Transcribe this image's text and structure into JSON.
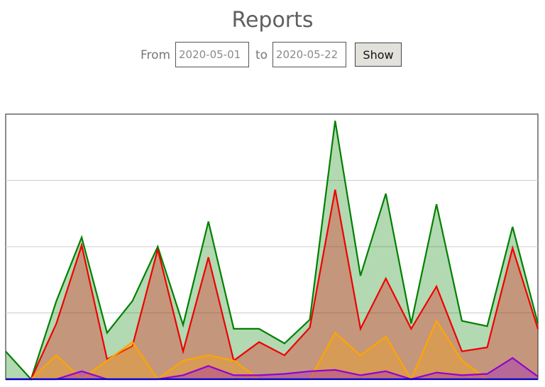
{
  "header": {
    "title": "Reports"
  },
  "filter": {
    "from_label": "From",
    "from_value": "2020-05-01",
    "to_label": "to",
    "to_value": "2020-05-22",
    "show_label": "Show"
  },
  "colors": {
    "green": "#008000",
    "red": "#ee0000",
    "orange": "#ffa500",
    "purple": "#9400d3",
    "blue": "#0000cc",
    "grid": "#cccccc",
    "frame": "#666666"
  },
  "chart_data": {
    "type": "area",
    "grid": true,
    "ylim": [
      0,
      100
    ],
    "x_count": 22,
    "series": [
      {
        "color": "#008000",
        "values": [
          10.5,
          0,
          29.5,
          53.5,
          17.5,
          29.5,
          50,
          20.5,
          59.5,
          19,
          19,
          13.5,
          22.5,
          97.5,
          39,
          70,
          21,
          66,
          22,
          20,
          57.5,
          21
        ]
      },
      {
        "color": "#ee0000",
        "values": [
          0,
          0,
          21,
          50.5,
          7.5,
          12.5,
          49,
          10.5,
          46,
          7,
          14,
          9,
          19.5,
          71.5,
          19,
          38,
          19,
          35,
          10.5,
          12,
          49.5,
          19
        ]
      },
      {
        "color": "#ffa500",
        "values": [
          0,
          0,
          9,
          0,
          7,
          14,
          0,
          7,
          9,
          7,
          0,
          0,
          0,
          17.5,
          9,
          16,
          0,
          22,
          7,
          0,
          0,
          0
        ]
      },
      {
        "color": "#9400d3",
        "values": [
          0,
          0,
          0,
          3,
          0,
          0,
          0,
          1.5,
          5,
          1.5,
          1.5,
          2,
          3,
          3.5,
          1.5,
          3,
          0,
          2.5,
          1.5,
          2,
          8,
          1
        ]
      },
      {
        "color": "#0000cc",
        "values": [
          0,
          0,
          0,
          0,
          0,
          0,
          0,
          0,
          0,
          0,
          0,
          0,
          0,
          0,
          0,
          0,
          0,
          0,
          0,
          0,
          0,
          0
        ]
      }
    ]
  }
}
